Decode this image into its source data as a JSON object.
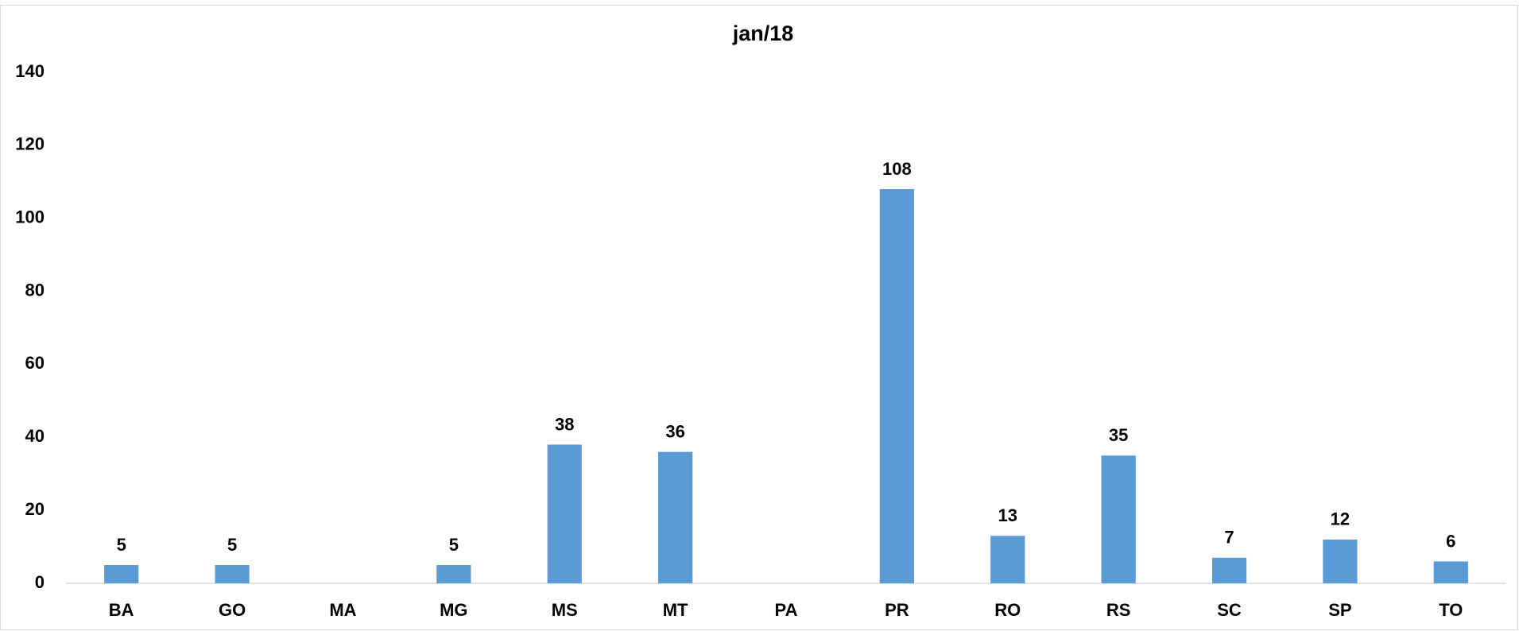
{
  "chart_data": {
    "type": "bar",
    "title": "jan/18",
    "categories": [
      "BA",
      "GO",
      "MA",
      "MG",
      "MS",
      "MT",
      "PA",
      "PR",
      "RO",
      "RS",
      "SC",
      "SP",
      "TO"
    ],
    "values": [
      5,
      5,
      null,
      5,
      38,
      36,
      null,
      108,
      13,
      35,
      7,
      12,
      6
    ],
    "color": "#5b9bd5",
    "ylim": [
      0,
      140
    ],
    "yticks": [
      0,
      20,
      40,
      60,
      80,
      100,
      120,
      140
    ],
    "grid": false
  }
}
